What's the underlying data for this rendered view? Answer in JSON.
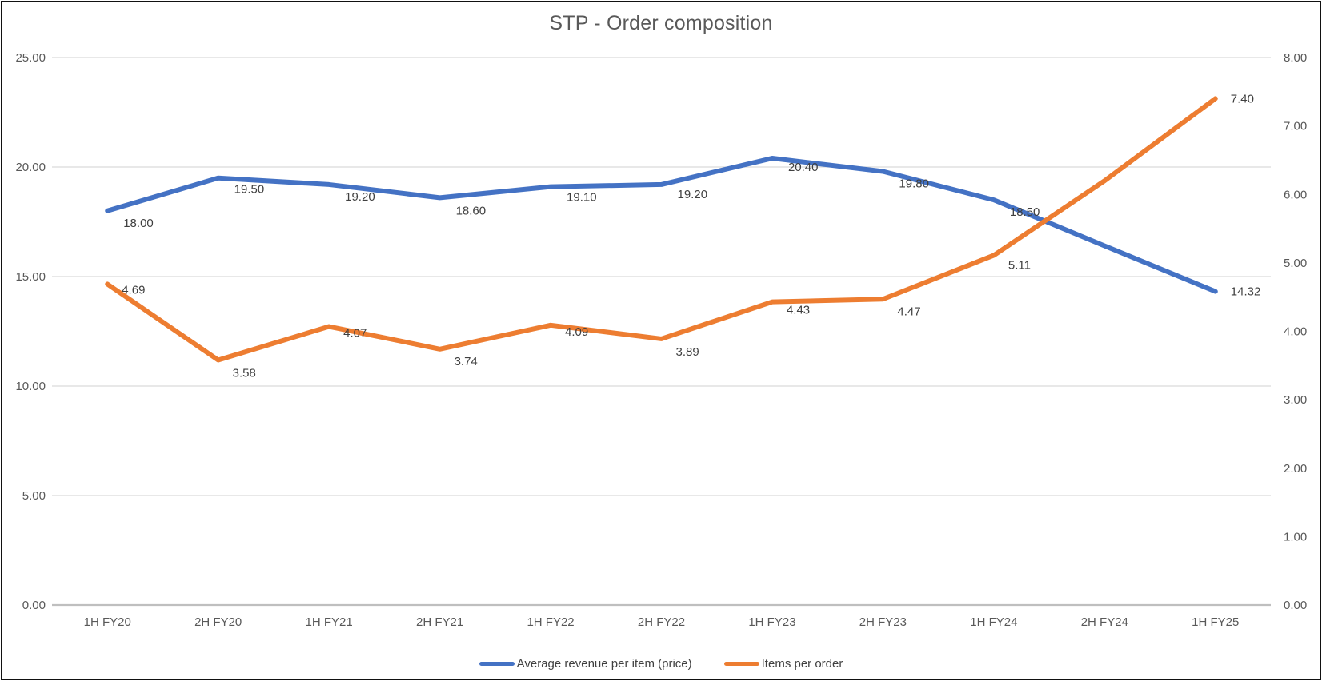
{
  "chart_data": {
    "type": "line",
    "title": "STP - Order composition",
    "categories": [
      "1H FY20",
      "2H FY20",
      "1H FY21",
      "2H FY21",
      "1H FY22",
      "2H FY22",
      "1H FY23",
      "2H FY23",
      "1H FY24",
      "2H FY24",
      "1H FY25"
    ],
    "series": [
      {
        "name": "Average revenue per item (price)",
        "axis": "left",
        "color": "#4472C4",
        "values": [
          18.0,
          19.5,
          19.2,
          18.6,
          19.1,
          19.2,
          20.4,
          19.8,
          18.5,
          16.4,
          14.32
        ],
        "point_labels": [
          "18.00",
          "19.50",
          "19.20",
          "18.60",
          "19.10",
          "19.20",
          "20.40",
          "19.80",
          "18.50",
          null,
          "14.32"
        ]
      },
      {
        "name": "Items per order",
        "axis": "right",
        "color": "#ED7D31",
        "values": [
          4.69,
          3.58,
          4.07,
          3.74,
          4.09,
          3.89,
          4.43,
          4.47,
          5.11,
          6.2,
          7.4
        ],
        "point_labels": [
          "4.69",
          "3.58",
          "4.07",
          "3.74",
          "4.09",
          "3.89",
          "4.43",
          "4.47",
          "5.11",
          null,
          "7.40"
        ]
      }
    ],
    "left_axis": {
      "min": 0,
      "max": 25,
      "step": 5,
      "tick_labels": [
        "0.00",
        "5.00",
        "10.00",
        "15.00",
        "20.00",
        "25.00"
      ]
    },
    "right_axis": {
      "min": 0,
      "max": 8,
      "step": 1,
      "tick_labels": [
        "0.00",
        "1.00",
        "2.00",
        "3.00",
        "4.00",
        "5.00",
        "6.00",
        "7.00",
        "8.00"
      ]
    },
    "grid": true,
    "legend_position": "bottom",
    "colors": {
      "grid": "#D9D9D9",
      "axis_line": "#BFBFBF",
      "tick_text": "#595959",
      "label_text": "#404040",
      "title_text": "#595959"
    }
  }
}
